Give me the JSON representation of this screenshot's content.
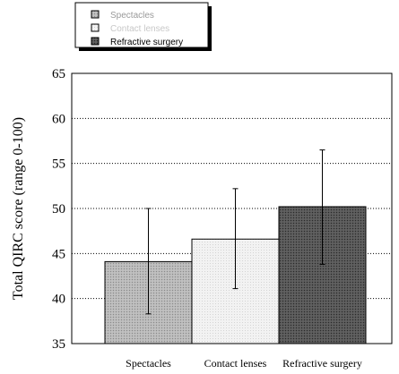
{
  "chart_data": {
    "type": "bar",
    "ylabel": "Total QIRC score (range 0-100)",
    "xlabel": "",
    "title": "",
    "ylim": [
      35,
      65
    ],
    "yticks": [
      35,
      40,
      45,
      50,
      55,
      60,
      65
    ],
    "grid": true,
    "legend_position": "top-left",
    "categories": [
      "Spectacles",
      "Contact lenses",
      "Refractive surgery"
    ],
    "values": [
      44.1,
      46.6,
      50.2
    ],
    "error_low": [
      38.3,
      41.1,
      43.8
    ],
    "error_high": [
      50.0,
      52.2,
      56.5
    ],
    "legend": [
      {
        "label": "Spectacles",
        "color": "#b4b4b4",
        "pattern": "dots-light"
      },
      {
        "label": "Contact lenses",
        "color": "#f0f0f0",
        "pattern": "dots-faint"
      },
      {
        "label": "Refractive surgery",
        "color": "#555555",
        "pattern": "dots-dark"
      }
    ]
  }
}
